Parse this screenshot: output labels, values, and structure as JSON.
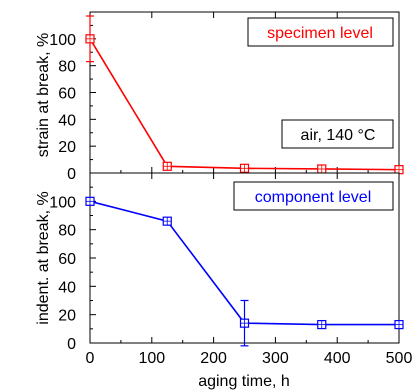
{
  "chart_data": [
    {
      "type": "line",
      "x": [
        0,
        125,
        250,
        375,
        500
      ],
      "series": [
        {
          "name": "specimen level",
          "color": "#ff0000",
          "values": [
            100,
            5,
            3.5,
            3,
            2.5
          ],
          "error": [
            17,
            0,
            0,
            0,
            0
          ]
        }
      ],
      "ylabel": "strain at break, %",
      "xlabel": "",
      "ylim": [
        0,
        120
      ],
      "xlim": [
        0,
        500
      ],
      "yticks": [
        0,
        20,
        40,
        60,
        80,
        100
      ],
      "annotation": "air, 140 °C",
      "grid": false,
      "legend_position": "top-right"
    },
    {
      "type": "line",
      "x": [
        0,
        125,
        250,
        375,
        500
      ],
      "series": [
        {
          "name": "component level",
          "color": "#0000ff",
          "values": [
            100,
            86,
            14,
            13,
            13
          ],
          "error": [
            0,
            0,
            16,
            0,
            0
          ]
        }
      ],
      "ylabel": "indent. at break, %",
      "xlabel": "aging time, h",
      "ylim": [
        0,
        120
      ],
      "xlim": [
        0,
        500
      ],
      "yticks": [
        0,
        20,
        40,
        60,
        80,
        100
      ],
      "xticks": [
        0,
        100,
        200,
        300,
        400,
        500
      ],
      "grid": false,
      "legend_position": "top-right"
    }
  ]
}
